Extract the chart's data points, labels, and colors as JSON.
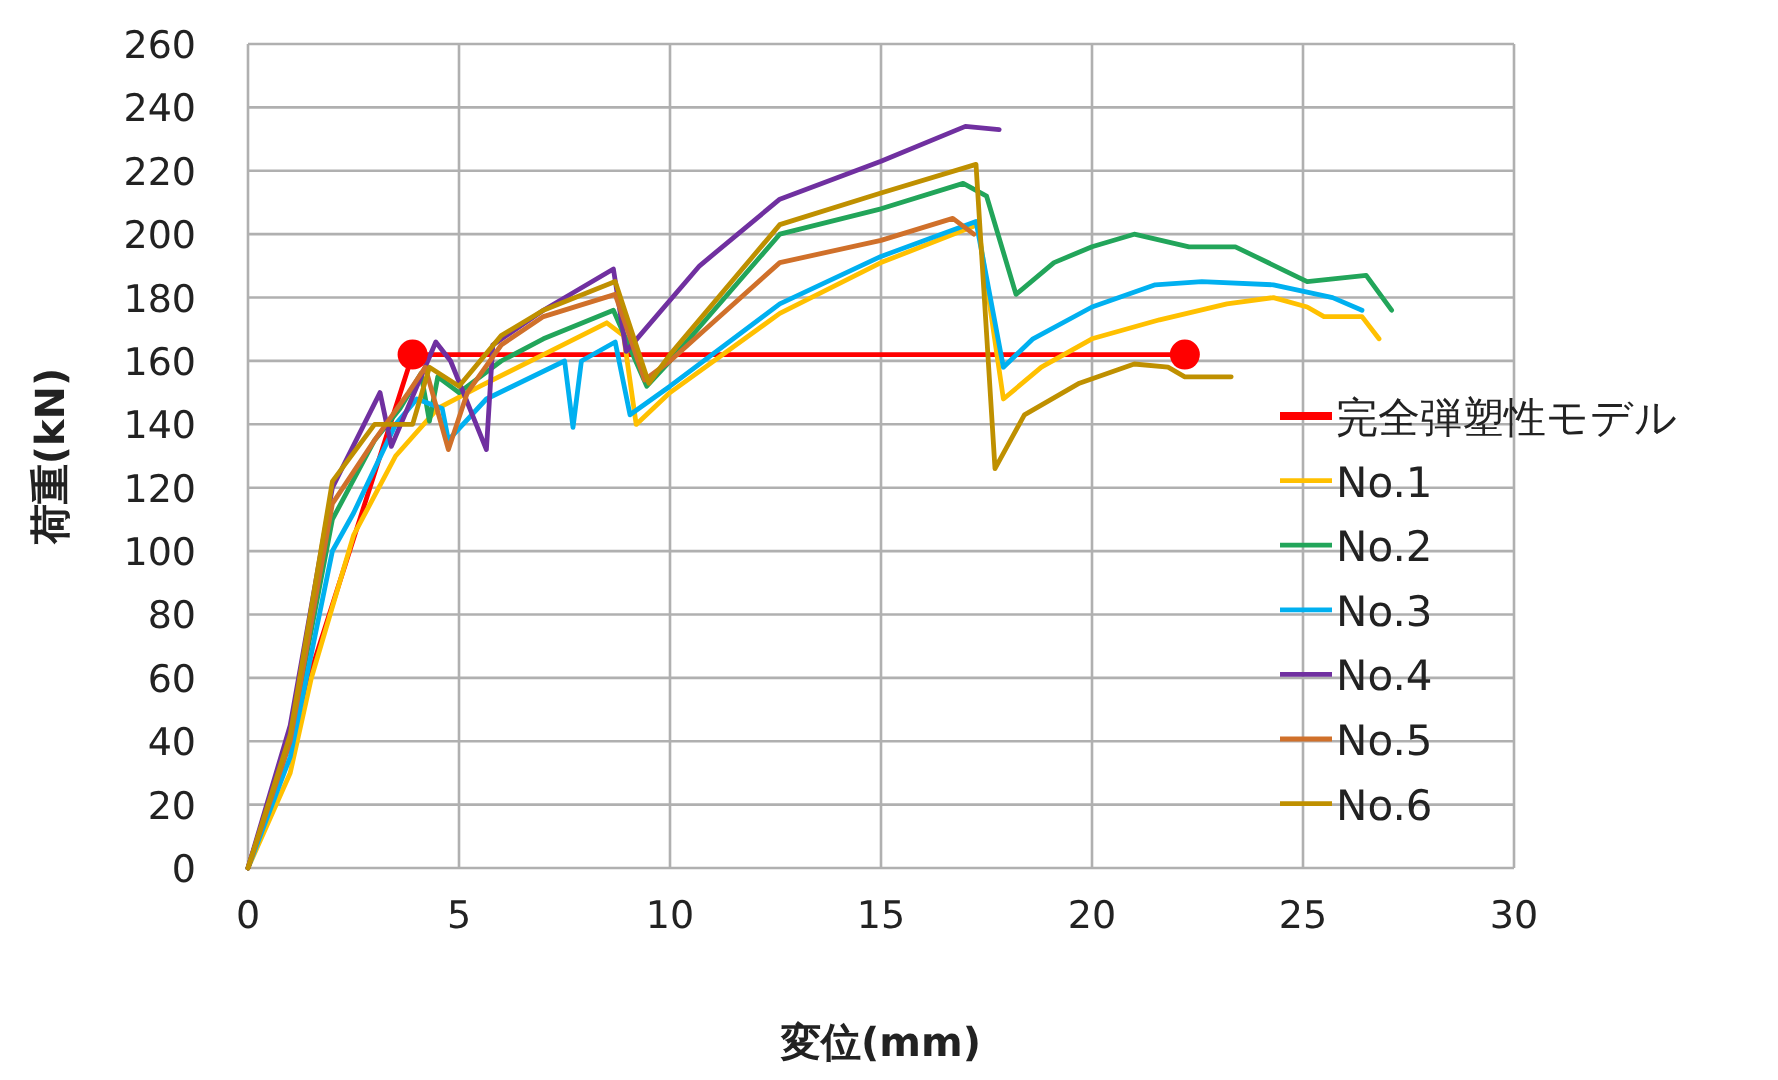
{
  "chart_data": {
    "type": "line",
    "xlabel": "変位(mm)",
    "ylabel": "荷重(kN)",
    "xlim": [
      0,
      30
    ],
    "ylim": [
      0,
      260
    ],
    "xticks": [
      0,
      5,
      10,
      15,
      20,
      25,
      30
    ],
    "yticks": [
      0,
      20,
      40,
      60,
      80,
      100,
      120,
      140,
      160,
      180,
      200,
      220,
      240,
      260
    ],
    "grid": true,
    "legend": "right",
    "series": [
      {
        "name": "完全弾塑性モデル",
        "color": "#ff0000",
        "x": [
          0,
          3.9,
          22.2
        ],
        "values": [
          0,
          162,
          162
        ]
      },
      {
        "name": "No.1",
        "color": "#ffc000",
        "x": [
          0,
          1,
          1.5,
          2.5,
          3.5,
          4.5,
          5.5,
          7,
          8.5,
          8.9,
          9.2,
          10,
          12.6,
          15,
          17.3,
          17.9,
          18.8,
          20,
          21.6,
          23.2,
          24.3,
          25.1,
          25.5,
          26.4,
          26.8
        ],
        "values": [
          0,
          30,
          60,
          105,
          130,
          145,
          152,
          162,
          172,
          168,
          140,
          150,
          175,
          191,
          203,
          148,
          158,
          167,
          173,
          178,
          180,
          177,
          174,
          174,
          167
        ]
      },
      {
        "name": "No.2",
        "color": "#22a55a",
        "x": [
          0,
          1,
          2,
          3,
          3.6,
          4.1,
          4.3,
          4.5,
          5,
          6,
          7,
          8.66,
          9.45,
          10,
          12.6,
          15,
          16.95,
          17.5,
          18.2,
          19.1,
          20,
          21,
          22.3,
          23.4,
          25.1,
          26.5,
          27.1
        ],
        "values": [
          0,
          40,
          110,
          135,
          145,
          156,
          141,
          155,
          150,
          160,
          167,
          176,
          152,
          160,
          200,
          208,
          216,
          212,
          181,
          191,
          196,
          200,
          196,
          196,
          185,
          187,
          176
        ]
      },
      {
        "name": "No.3",
        "color": "#00b0f0",
        "x": [
          0,
          1,
          2,
          2.5,
          3.5,
          4,
          4.6,
          4.75,
          5.65,
          7.5,
          7.7,
          7.9,
          8.7,
          9.05,
          10,
          12.6,
          15,
          17.25,
          17.9,
          18.6,
          20,
          21.5,
          22.6,
          24.3,
          25.7,
          26.4
        ],
        "values": [
          0,
          35,
          100,
          112,
          140,
          148,
          145,
          135,
          148,
          160,
          139,
          160,
          166,
          143,
          152,
          178,
          193,
          204,
          158,
          167,
          177,
          184,
          185,
          184,
          180,
          176
        ]
      },
      {
        "name": "No.4",
        "color": "#7030a0",
        "x": [
          0,
          1,
          2,
          3.13,
          3.4,
          4.45,
          4.8,
          5.65,
          5.8,
          7,
          8.66,
          8.96,
          10.7,
          12.6,
          15,
          17,
          17.8
        ],
        "values": [
          0,
          45,
          120,
          150,
          133,
          166,
          160,
          132,
          165,
          176,
          189,
          163,
          190,
          211,
          223,
          234,
          233
        ]
      },
      {
        "name": "No.5",
        "color": "#d0702a",
        "x": [
          0,
          1,
          2,
          3,
          3.8,
          4.2,
          4.75,
          5.2,
          6,
          7,
          8.7,
          9.4,
          10,
          12.6,
          15,
          16.7,
          17.2
        ],
        "values": [
          0,
          40,
          115,
          135,
          150,
          158,
          132,
          150,
          165,
          174,
          181,
          154,
          160,
          191,
          198,
          205,
          200
        ]
      },
      {
        "name": "No.6",
        "color": "#bf9000",
        "x": [
          0,
          1,
          2,
          3,
          3.9,
          4.3,
          5,
          6,
          7,
          8.7,
          9.5,
          10,
          12.6,
          15,
          17.25,
          17.7,
          18.4,
          19.7,
          21,
          21.8,
          22.2,
          23.3
        ],
        "values": [
          0,
          42,
          122,
          140,
          140,
          158,
          152,
          168,
          176,
          185,
          153,
          162,
          203,
          213,
          222,
          126,
          143,
          153,
          159,
          158,
          155,
          155
        ]
      },
      {
        "type": "scatter",
        "marker": "circle",
        "color": "#ff0000",
        "x": [
          3.9,
          22.2
        ],
        "values": [
          162,
          162
        ]
      }
    ]
  }
}
